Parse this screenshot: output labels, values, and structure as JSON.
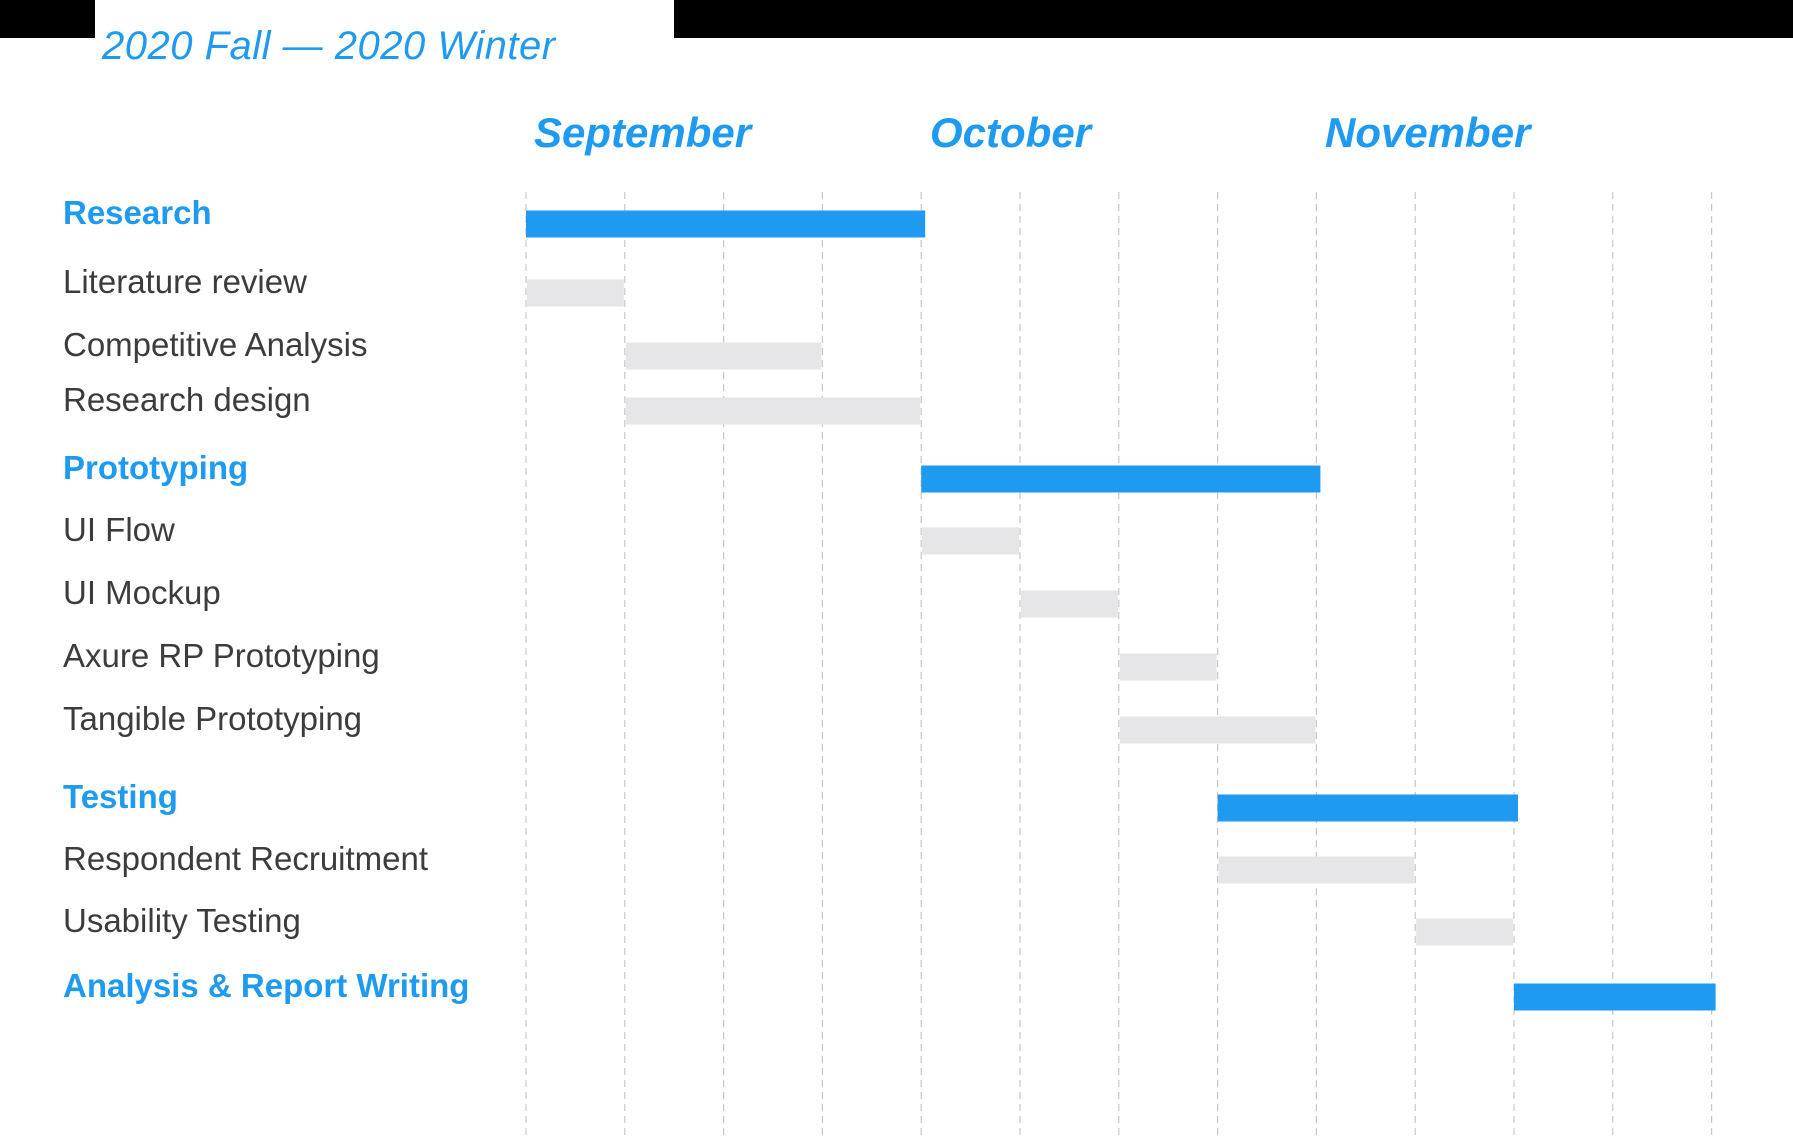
{
  "chart_data": {
    "type": "gantt",
    "title": "2020 Fall — 2020 Winter",
    "months": [
      "September",
      "October",
      "November"
    ],
    "weeks_per_month": 4,
    "total_weeks": 12,
    "colors": {
      "group": "#1e9bf0",
      "task": "#e6e6e8",
      "grid": "#c8c8c8"
    },
    "rows": [
      {
        "label": "Research",
        "kind": "group",
        "start_week": 0,
        "end_week": 4
      },
      {
        "label": "Literature review",
        "kind": "task",
        "start_week": 0,
        "end_week": 1
      },
      {
        "label": "Competitive Analysis",
        "kind": "task",
        "start_week": 1,
        "end_week": 3
      },
      {
        "label": "Research design",
        "kind": "task",
        "start_week": 1,
        "end_week": 4
      },
      {
        "label": "Prototyping",
        "kind": "group",
        "start_week": 4,
        "end_week": 8
      },
      {
        "label": "UI Flow",
        "kind": "task",
        "start_week": 4,
        "end_week": 5
      },
      {
        "label": "UI Mockup",
        "kind": "task",
        "start_week": 5,
        "end_week": 6
      },
      {
        "label": "Axure RP Prototyping",
        "kind": "task",
        "start_week": 6,
        "end_week": 7
      },
      {
        "label": "Tangible Prototyping",
        "kind": "task",
        "start_week": 6,
        "end_week": 8
      },
      {
        "label": "Testing",
        "kind": "group",
        "start_week": 7,
        "end_week": 10
      },
      {
        "label": "Respondent Recruitment",
        "kind": "task",
        "start_week": 7,
        "end_week": 9
      },
      {
        "label": "Usability Testing",
        "kind": "task",
        "start_week": 9,
        "end_week": 10
      },
      {
        "label": "Analysis & Report Writing",
        "kind": "group",
        "start_week": 10,
        "end_week": 12
      }
    ]
  }
}
